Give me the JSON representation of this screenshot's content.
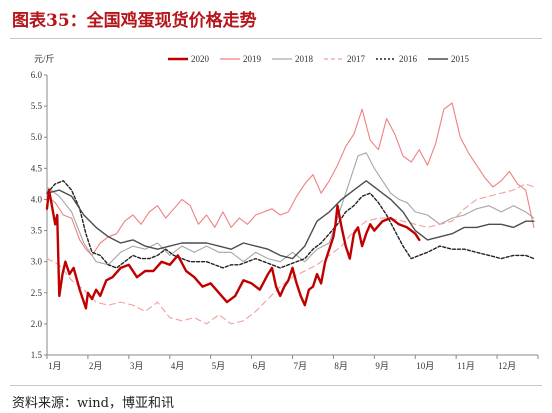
{
  "figure": {
    "title": "图表35：全国鸡蛋现货价格走势",
    "source": "资料来源：wind，博亚和讯"
  },
  "chart_data": {
    "type": "line",
    "title": "图表35：全国鸡蛋现货价格走势",
    "xlabel": "",
    "ylabel": "元/斤",
    "ylim": [
      1.5,
      6.0
    ],
    "yticks": [
      "1.5",
      "2.0",
      "2.5",
      "3.0",
      "3.5",
      "4.0",
      "4.5",
      "5.0",
      "5.5",
      "6.0"
    ],
    "xticks": [
      "1月",
      "2月",
      "3月",
      "4月",
      "5月",
      "6月",
      "7月",
      "8月",
      "9月",
      "10月",
      "11月",
      "12月"
    ],
    "x_domain": [
      1,
      13
    ],
    "grid": false,
    "legend": "top",
    "series": [
      {
        "name": "2020",
        "color": "#c00000",
        "dash": "solid",
        "width": 2.4,
        "x": [
          1.0,
          1.05,
          1.12,
          1.2,
          1.25,
          1.3,
          1.38,
          1.45,
          1.55,
          1.65,
          1.8,
          1.95,
          2.0,
          2.1,
          2.2,
          2.3,
          2.45,
          2.6,
          2.8,
          3.0,
          3.2,
          3.4,
          3.6,
          3.8,
          4.0,
          4.2,
          4.4,
          4.6,
          4.8,
          5.0,
          5.2,
          5.4,
          5.6,
          5.8,
          6.0,
          6.2,
          6.4,
          6.5,
          6.6,
          6.7,
          6.8,
          6.9,
          7.0,
          7.1,
          7.2,
          7.3,
          7.4,
          7.5,
          7.6,
          7.7,
          7.8,
          7.9,
          8.0,
          8.05,
          8.1,
          8.2,
          8.3,
          8.4,
          8.5,
          8.6,
          8.7,
          8.8,
          8.9,
          9.0,
          9.2,
          9.4,
          9.6,
          9.8,
          10.0,
          10.1
        ],
        "y": [
          3.85,
          4.15,
          3.9,
          3.6,
          3.75,
          2.45,
          2.8,
          3.0,
          2.8,
          2.9,
          2.55,
          2.25,
          2.5,
          2.4,
          2.55,
          2.45,
          2.7,
          2.75,
          2.9,
          2.95,
          2.75,
          2.85,
          2.85,
          3.0,
          2.95,
          3.1,
          2.85,
          2.75,
          2.6,
          2.65,
          2.5,
          2.35,
          2.45,
          2.7,
          2.65,
          2.55,
          2.8,
          2.9,
          2.6,
          2.45,
          2.6,
          2.7,
          2.9,
          2.65,
          2.45,
          2.3,
          2.55,
          2.6,
          2.8,
          2.65,
          3.0,
          3.2,
          3.4,
          3.6,
          3.9,
          3.55,
          3.25,
          3.05,
          3.45,
          3.55,
          3.25,
          3.45,
          3.6,
          3.5,
          3.65,
          3.7,
          3.6,
          3.55,
          3.45,
          3.35
        ]
      },
      {
        "name": "2019",
        "color": "#f08080",
        "dash": "solid",
        "width": 1.1,
        "x": [
          1.0,
          1.2,
          1.4,
          1.6,
          1.8,
          1.95,
          2.1,
          2.3,
          2.5,
          2.7,
          2.9,
          3.1,
          3.3,
          3.5,
          3.7,
          3.9,
          4.1,
          4.3,
          4.5,
          4.7,
          4.9,
          5.1,
          5.3,
          5.5,
          5.7,
          5.9,
          6.1,
          6.3,
          6.5,
          6.7,
          6.9,
          7.1,
          7.3,
          7.5,
          7.7,
          7.9,
          8.1,
          8.3,
          8.5,
          8.7,
          8.9,
          9.1,
          9.3,
          9.5,
          9.7,
          9.9,
          10.1,
          10.3,
          10.5,
          10.7,
          10.9,
          11.1,
          11.3,
          11.5,
          11.7,
          11.9,
          12.1,
          12.3,
          12.5,
          12.7,
          12.9
        ],
        "y": [
          4.05,
          3.95,
          3.75,
          3.7,
          3.35,
          3.2,
          3.1,
          3.3,
          3.4,
          3.45,
          3.65,
          3.75,
          3.6,
          3.8,
          3.9,
          3.7,
          3.85,
          4.0,
          3.9,
          3.6,
          3.75,
          3.55,
          3.8,
          3.55,
          3.7,
          3.6,
          3.75,
          3.8,
          3.85,
          3.75,
          3.8,
          4.05,
          4.25,
          4.4,
          4.1,
          4.3,
          4.55,
          4.85,
          5.05,
          5.45,
          4.95,
          4.8,
          5.3,
          5.05,
          4.7,
          4.6,
          4.8,
          4.55,
          4.9,
          5.45,
          5.55,
          5.0,
          4.75,
          4.55,
          4.35,
          4.2,
          4.3,
          4.45,
          4.25,
          4.15,
          3.55
        ]
      },
      {
        "name": "2018",
        "color": "#a6a6a6",
        "dash": "solid",
        "width": 1.1,
        "x": [
          1.0,
          1.3,
          1.6,
          1.9,
          2.2,
          2.5,
          2.8,
          3.1,
          3.4,
          3.7,
          4.0,
          4.3,
          4.6,
          4.9,
          5.2,
          5.5,
          5.8,
          6.1,
          6.4,
          6.7,
          7.0,
          7.3,
          7.6,
          7.9,
          8.2,
          8.4,
          8.6,
          8.8,
          9.0,
          9.2,
          9.4,
          9.6,
          9.8,
          10.0,
          10.3,
          10.6,
          10.9,
          11.2,
          11.5,
          11.8,
          12.1,
          12.4,
          12.7,
          12.9
        ],
        "y": [
          4.2,
          4.05,
          3.8,
          3.3,
          3.0,
          2.95,
          3.15,
          3.25,
          3.2,
          3.3,
          3.1,
          3.25,
          3.15,
          3.25,
          3.15,
          3.15,
          3.0,
          3.15,
          3.05,
          3.0,
          3.15,
          3.0,
          3.2,
          3.3,
          3.9,
          4.3,
          4.7,
          4.75,
          4.5,
          4.3,
          4.1,
          4.0,
          3.95,
          3.8,
          3.75,
          3.6,
          3.7,
          3.75,
          3.85,
          3.9,
          3.8,
          3.9,
          3.8,
          3.7
        ]
      },
      {
        "name": "2017",
        "color": "#f2a0a0",
        "dash": "dashed",
        "width": 1.1,
        "x": [
          1.0,
          1.3,
          1.6,
          1.9,
          2.2,
          2.5,
          2.8,
          3.1,
          3.4,
          3.7,
          4.0,
          4.3,
          4.6,
          4.9,
          5.2,
          5.5,
          5.8,
          6.1,
          6.4,
          6.7,
          7.0,
          7.3,
          7.6,
          7.9,
          8.2,
          8.5,
          8.8,
          9.1,
          9.4,
          9.7,
          10.0,
          10.3,
          10.6,
          10.9,
          11.2,
          11.5,
          11.8,
          12.1,
          12.4,
          12.7,
          12.9
        ],
        "y": [
          3.05,
          2.95,
          2.7,
          2.55,
          2.35,
          2.3,
          2.35,
          2.3,
          2.2,
          2.35,
          2.1,
          2.05,
          2.1,
          2.0,
          2.15,
          2.0,
          2.05,
          2.2,
          2.4,
          2.6,
          2.75,
          2.85,
          2.95,
          3.1,
          3.25,
          3.5,
          3.65,
          3.7,
          3.7,
          3.65,
          3.6,
          3.55,
          3.6,
          3.65,
          3.85,
          4.0,
          4.05,
          4.1,
          4.15,
          4.25,
          4.2
        ]
      },
      {
        "name": "2016",
        "color": "#222222",
        "dash": "dotted",
        "width": 1.4,
        "x": [
          1.0,
          1.2,
          1.4,
          1.6,
          1.8,
          1.95,
          2.1,
          2.3,
          2.5,
          2.7,
          2.9,
          3.1,
          3.3,
          3.5,
          3.7,
          3.9,
          4.1,
          4.3,
          4.5,
          4.7,
          4.9,
          5.1,
          5.3,
          5.5,
          5.7,
          5.9,
          6.1,
          6.3,
          6.5,
          6.7,
          6.9,
          7.1,
          7.3,
          7.5,
          7.7,
          7.9,
          8.1,
          8.3,
          8.5,
          8.7,
          8.9,
          9.1,
          9.3,
          9.5,
          9.7,
          9.9,
          10.1,
          10.3,
          10.6,
          10.9,
          11.2,
          11.5,
          11.8,
          12.1,
          12.4,
          12.7,
          12.9
        ],
        "y": [
          4.1,
          4.25,
          4.3,
          4.15,
          3.85,
          3.45,
          3.15,
          3.1,
          2.95,
          2.9,
          3.0,
          3.1,
          3.05,
          3.05,
          3.1,
          3.2,
          3.1,
          3.05,
          3.0,
          3.0,
          3.0,
          2.95,
          2.9,
          2.95,
          2.95,
          3.0,
          3.05,
          3.0,
          2.95,
          2.9,
          2.95,
          3.0,
          3.05,
          3.2,
          3.3,
          3.45,
          3.6,
          3.8,
          3.9,
          4.05,
          4.1,
          3.95,
          3.75,
          3.5,
          3.25,
          3.05,
          3.1,
          3.15,
          3.25,
          3.2,
          3.2,
          3.15,
          3.1,
          3.05,
          3.1,
          3.1,
          3.05
        ]
      },
      {
        "name": "2015",
        "color": "#4d4d4d",
        "dash": "solid",
        "width": 1.4,
        "x": [
          1.0,
          1.3,
          1.6,
          1.9,
          2.2,
          2.5,
          2.8,
          3.1,
          3.4,
          3.7,
          4.0,
          4.3,
          4.6,
          4.9,
          5.2,
          5.5,
          5.8,
          6.1,
          6.4,
          6.7,
          7.0,
          7.3,
          7.6,
          7.9,
          8.2,
          8.5,
          8.8,
          9.1,
          9.4,
          9.7,
          10.0,
          10.3,
          10.6,
          10.9,
          11.2,
          11.5,
          11.8,
          12.1,
          12.4,
          12.7,
          12.9
        ],
        "y": [
          4.1,
          4.15,
          4.05,
          3.75,
          3.55,
          3.4,
          3.3,
          3.35,
          3.25,
          3.2,
          3.25,
          3.3,
          3.3,
          3.3,
          3.25,
          3.2,
          3.3,
          3.25,
          3.2,
          3.1,
          3.05,
          3.25,
          3.65,
          3.8,
          4.0,
          4.15,
          4.3,
          4.15,
          4.0,
          3.8,
          3.5,
          3.35,
          3.4,
          3.45,
          3.55,
          3.55,
          3.6,
          3.6,
          3.55,
          3.65,
          3.65
        ]
      }
    ]
  }
}
